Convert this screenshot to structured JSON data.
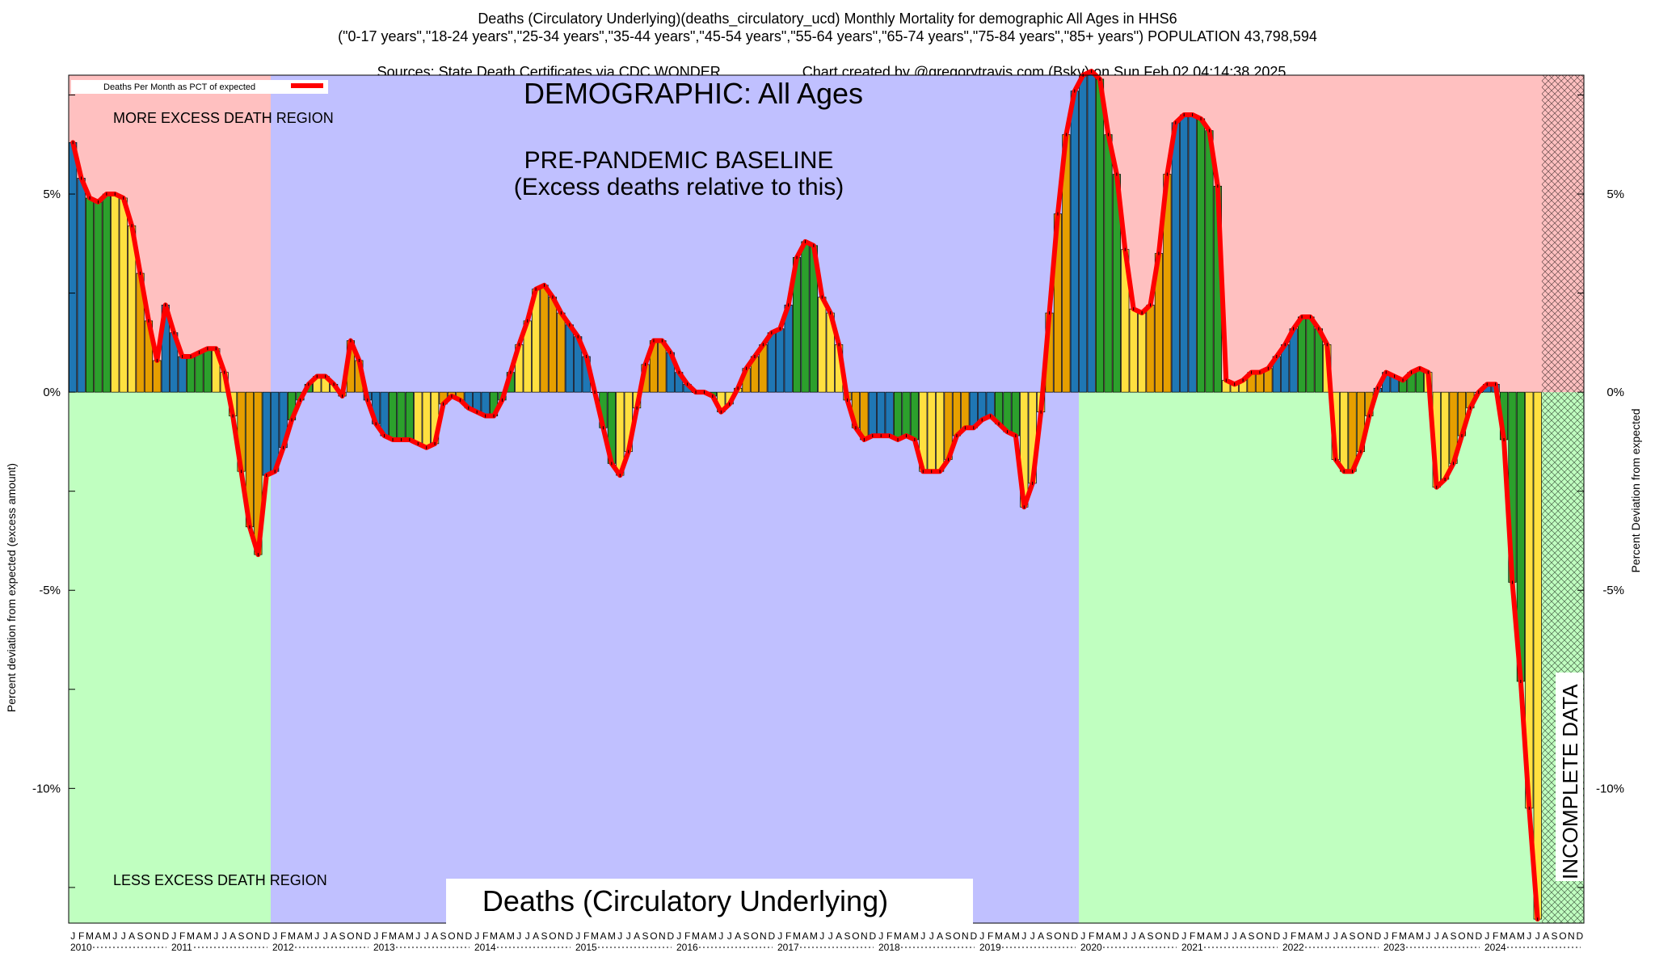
{
  "header": {
    "line1": "Deaths (Circulatory Underlying)(deaths_circulatory_ucd) Monthly Mortality for demographic All Ages in HHS6",
    "line2": "(\"0-17 years\",\"18-24 years\",\"25-34 years\",\"35-44 years\",\"45-54 years\",\"55-64 years\",\"65-74 years\",\"75-84 years\",\"85+ years\") POPULATION 43,798,594",
    "line3_left": "Sources: State Death Certificates via CDC WONDER.",
    "line3_right": "Chart created by @gregorytravis.com (Bsky) on Sun Feb 02 04:14:38 2025"
  },
  "colors": {
    "excess_region": "#ffc0c0",
    "less_region": "#c0ffc0",
    "baseline_region": "#c0c0ff",
    "line": "#ff0000",
    "bar_winter": "#1f77b4",
    "bar_spring": "#2ca02c",
    "bar_summer": "#ffe040",
    "bar_fall": "#e69f00"
  },
  "chart_data": {
    "type": "bar",
    "title": "DEMOGRAPHIC: All Ages",
    "subtitle": "Deaths (Circulatory Underlying)",
    "ylabel_left": "Percent deviation from expected (excess amount)",
    "ylabel_right": "Percent Deviation from expected",
    "legend": "Deaths Per Month as PCT of expected",
    "legend_position": "top-left",
    "ylim": [
      -13.4,
      8
    ],
    "yticks": [
      {
        "v": 5,
        "label": "5%"
      },
      {
        "v": 0,
        "label": "0%"
      },
      {
        "v": -5,
        "label": "-5%"
      },
      {
        "v": -10,
        "label": "-10%"
      }
    ],
    "x_start": "2010-01",
    "month_letters": [
      "J",
      "F",
      "M",
      "A",
      "M",
      "J",
      "J",
      "A",
      "S",
      "O",
      "N",
      "D"
    ],
    "years": [
      "2010",
      "2011",
      "2012",
      "2013",
      "2014",
      "2015",
      "2016",
      "2017",
      "2018",
      "2019",
      "2020",
      "2021",
      "2022",
      "2023",
      "2024"
    ],
    "annotations": {
      "more_excess": "MORE EXCESS DEATH REGION",
      "less_excess": "LESS EXCESS DEATH REGION",
      "baseline_title": "PRE-PANDEMIC BASELINE",
      "baseline_sub": "(Excess deaths relative to this)",
      "incomplete": "INCOMPLETE DATA"
    },
    "regions": [
      {
        "name": "excess-2010-2011",
        "from": "2010-01",
        "to": "2011-12"
      },
      {
        "name": "baseline-2012-2019",
        "from": "2012-01",
        "to": "2019-12"
      },
      {
        "name": "excess-2020-2024",
        "from": "2020-01",
        "to": "2024-12"
      },
      {
        "name": "incomplete",
        "from": "2024-08",
        "to": "2024-12"
      }
    ],
    "series": [
      {
        "name": "Deaths Per Month as PCT of expected",
        "values": [
          6.3,
          5.4,
          4.9,
          4.8,
          5.0,
          5.0,
          4.9,
          4.2,
          3.0,
          1.8,
          0.8,
          2.2,
          1.5,
          0.9,
          0.9,
          1.0,
          1.1,
          1.1,
          0.5,
          -0.6,
          -2.0,
          -3.4,
          -4.1,
          -2.1,
          -2.0,
          -1.4,
          -0.7,
          -0.2,
          0.2,
          0.4,
          0.4,
          0.2,
          -0.1,
          1.3,
          0.8,
          -0.2,
          -0.8,
          -1.1,
          -1.2,
          -1.2,
          -1.2,
          -1.3,
          -1.4,
          -1.3,
          -0.3,
          -0.1,
          -0.2,
          -0.4,
          -0.5,
          -0.6,
          -0.6,
          -0.2,
          0.5,
          1.2,
          1.8,
          2.6,
          2.7,
          2.4,
          2.0,
          1.7,
          1.4,
          0.9,
          0.0,
          -0.9,
          -1.8,
          -2.1,
          -1.5,
          -0.4,
          0.7,
          1.3,
          1.3,
          1.0,
          0.5,
          0.2,
          0.0,
          0.0,
          -0.1,
          -0.5,
          -0.3,
          0.1,
          0.6,
          0.9,
          1.2,
          1.5,
          1.6,
          2.2,
          3.4,
          3.8,
          3.7,
          2.4,
          2.0,
          1.2,
          -0.2,
          -0.9,
          -1.2,
          -1.1,
          -1.1,
          -1.1,
          -1.2,
          -1.1,
          -1.2,
          -2.0,
          -2.0,
          -2.0,
          -1.7,
          -1.1,
          -0.9,
          -0.9,
          -0.7,
          -0.6,
          -0.8,
          -1.0,
          -1.1,
          -2.9,
          -2.3,
          -0.5,
          2.0,
          4.5,
          6.5,
          7.6,
          8.0,
          8.1,
          7.9,
          6.5,
          5.5,
          3.6,
          2.1,
          2.0,
          2.2,
          3.5,
          5.5,
          6.8,
          7.0,
          7.0,
          6.9,
          6.6,
          5.2,
          0.3,
          0.2,
          0.3,
          0.5,
          0.5,
          0.6,
          0.9,
          1.2,
          1.6,
          1.9,
          1.9,
          1.6,
          1.2,
          -1.7,
          -2.0,
          -2.0,
          -1.5,
          -0.6,
          0.1,
          0.5,
          0.4,
          0.3,
          0.5,
          0.6,
          0.5,
          -2.4,
          -2.2,
          -1.8,
          -1.1,
          -0.4,
          0.0,
          0.2,
          0.2,
          -1.2,
          -4.8,
          -7.3,
          -10.5,
          -13.3
        ]
      }
    ]
  }
}
